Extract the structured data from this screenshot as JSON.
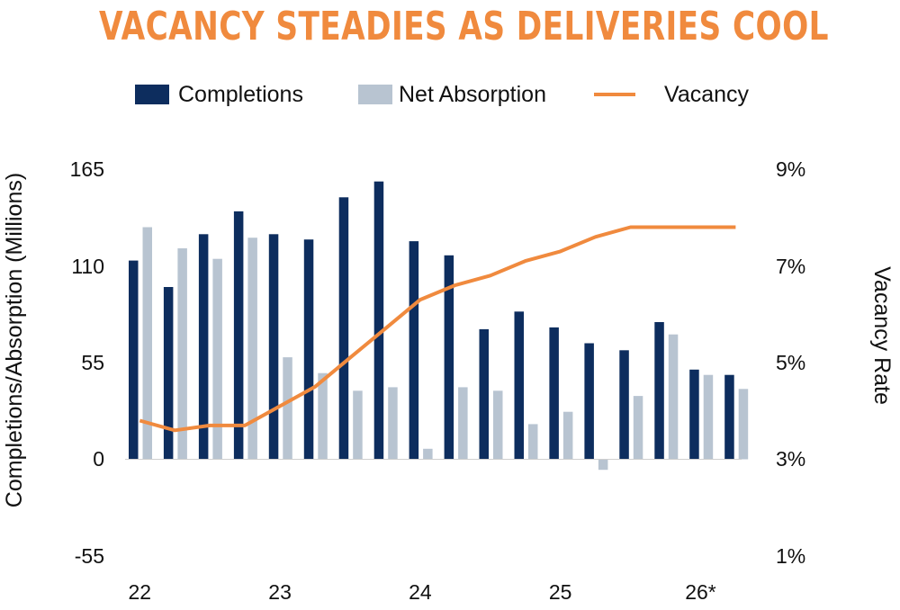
{
  "chart_data": {
    "type": "bar",
    "title": "VACANCY STEADIES AS DELIVERIES COOL",
    "ylabel": "Completions/Absorption (Millions)",
    "y2label": "Vacancy Rate",
    "ylim": [
      -55,
      165
    ],
    "y_ticks": [
      "165",
      "110",
      "55",
      "0",
      "-55"
    ],
    "y2lim": [
      1,
      9
    ],
    "y2_ticks": [
      "9%",
      "7%",
      "5%",
      "3%",
      "1%"
    ],
    "x_tick_labels": [
      "22",
      "23",
      "24",
      "25",
      "26*"
    ],
    "x_tick_positions": [
      0,
      4,
      8,
      12,
      16
    ],
    "series": [
      {
        "name": "Completions",
        "kind": "bar",
        "color": "#0d2d5e",
        "values": [
          113,
          98,
          128,
          141,
          128,
          125,
          149,
          158,
          124,
          116,
          74,
          84,
          75,
          66,
          62,
          78,
          51,
          48
        ]
      },
      {
        "name": "Net Absorption",
        "kind": "bar",
        "color": "#b8c4d1",
        "values": [
          132,
          120,
          114,
          126,
          58,
          49,
          39,
          41,
          6,
          41,
          39,
          20,
          27,
          -6,
          36,
          71,
          48,
          40
        ]
      },
      {
        "name": "Vacancy",
        "kind": "line",
        "color": "#f08a3e",
        "axis": "right",
        "values": [
          3.8,
          3.6,
          3.7,
          3.7,
          4.1,
          4.5,
          5.1,
          5.7,
          6.3,
          6.6,
          6.8,
          7.1,
          7.3,
          7.6,
          7.8,
          7.8,
          7.8,
          7.8
        ]
      }
    ],
    "legend": "top"
  }
}
